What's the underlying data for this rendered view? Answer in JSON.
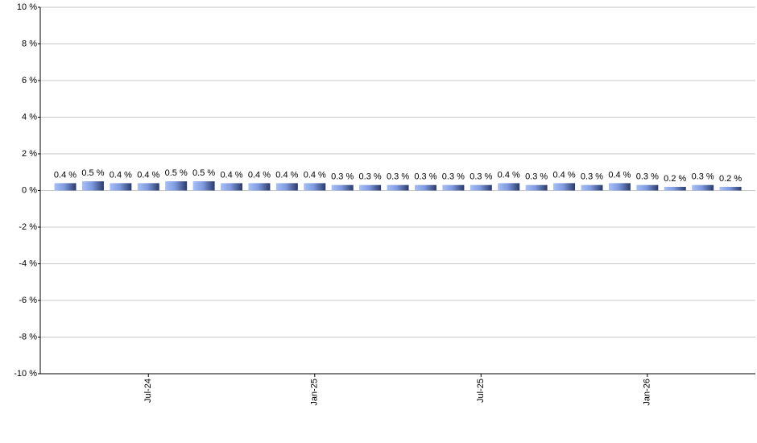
{
  "chart_data": {
    "type": "bar",
    "categories": [
      null,
      null,
      null,
      "Jul-24",
      null,
      null,
      null,
      null,
      null,
      "Jan-25",
      null,
      null,
      null,
      null,
      null,
      "Jul-25",
      null,
      null,
      null,
      null,
      null,
      "Jan-26",
      null,
      null,
      null
    ],
    "values": [
      0.4,
      0.5,
      0.4,
      0.4,
      0.5,
      0.5,
      0.4,
      0.4,
      0.4,
      0.4,
      0.3,
      0.3,
      0.3,
      0.3,
      0.3,
      0.3,
      0.4,
      0.3,
      0.4,
      0.3,
      0.4,
      0.3,
      0.2,
      0.3,
      0.2
    ],
    "value_labels": [
      "0.4 %",
      "0.5 %",
      "0.4 %",
      "0.4 %",
      "0.5 %",
      "0.5 %",
      "0.4 %",
      "0.4 %",
      "0.4 %",
      "0.4 %",
      "0.3 %",
      "0.3 %",
      "0.3 %",
      "0.3 %",
      "0.3 %",
      "0.3 %",
      "0.4 %",
      "0.3 %",
      "0.4 %",
      "0.3 %",
      "0.4 %",
      "0.3 %",
      "0.2 %",
      "0.3 %",
      "0.2 %"
    ],
    "color": "#7f9be0",
    "ylim": [
      -10,
      10
    ],
    "yticks": [
      {
        "value": -10,
        "label": "-10 %"
      },
      {
        "value": -8,
        "label": "-8 %"
      },
      {
        "value": -6,
        "label": "-6 %"
      },
      {
        "value": -4,
        "label": "-4 %"
      },
      {
        "value": -2,
        "label": "-2 %"
      },
      {
        "value": 0,
        "label": "0 %"
      },
      {
        "value": 2,
        "label": "2 %"
      },
      {
        "value": 4,
        "label": "4 %"
      },
      {
        "value": 6,
        "label": "6 %"
      },
      {
        "value": 8,
        "label": "8 %"
      },
      {
        "value": 10,
        "label": "10 %"
      }
    ],
    "grid": true
  }
}
